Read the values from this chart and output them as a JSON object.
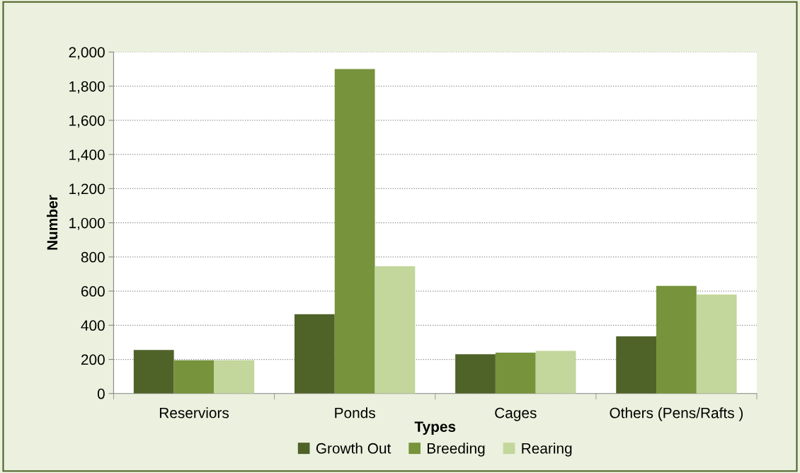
{
  "chart_data": {
    "type": "bar",
    "xlabel": "Types",
    "ylabel": "Number",
    "categories": [
      "Reserviors",
      "Ponds",
      "Cages",
      "Others (Pens/Rafts )"
    ],
    "series": [
      {
        "name": "Growth Out",
        "color": "#4f6228",
        "values": [
          255,
          465,
          230,
          335
        ]
      },
      {
        "name": "Breeding",
        "color": "#77933c",
        "values": [
          195,
          1900,
          240,
          630
        ]
      },
      {
        "name": "Rearing",
        "color": "#c3d69b",
        "values": [
          195,
          745,
          250,
          580
        ]
      }
    ],
    "ylim": [
      0,
      2000
    ],
    "yticks": [
      {
        "value": 0,
        "label": "0"
      },
      {
        "value": 200,
        "label": "200"
      },
      {
        "value": 400,
        "label": "400"
      },
      {
        "value": 600,
        "label": "600"
      },
      {
        "value": 800,
        "label": "800"
      },
      {
        "value": 1000,
        "label": "1,000"
      },
      {
        "value": 1200,
        "label": "1,200"
      },
      {
        "value": 1400,
        "label": "1,400"
      },
      {
        "value": 1600,
        "label": "1,600"
      },
      {
        "value": 1800,
        "label": "1,800"
      },
      {
        "value": 2000,
        "label": "2,000"
      }
    ],
    "grid": "y",
    "legend": "bottom"
  }
}
